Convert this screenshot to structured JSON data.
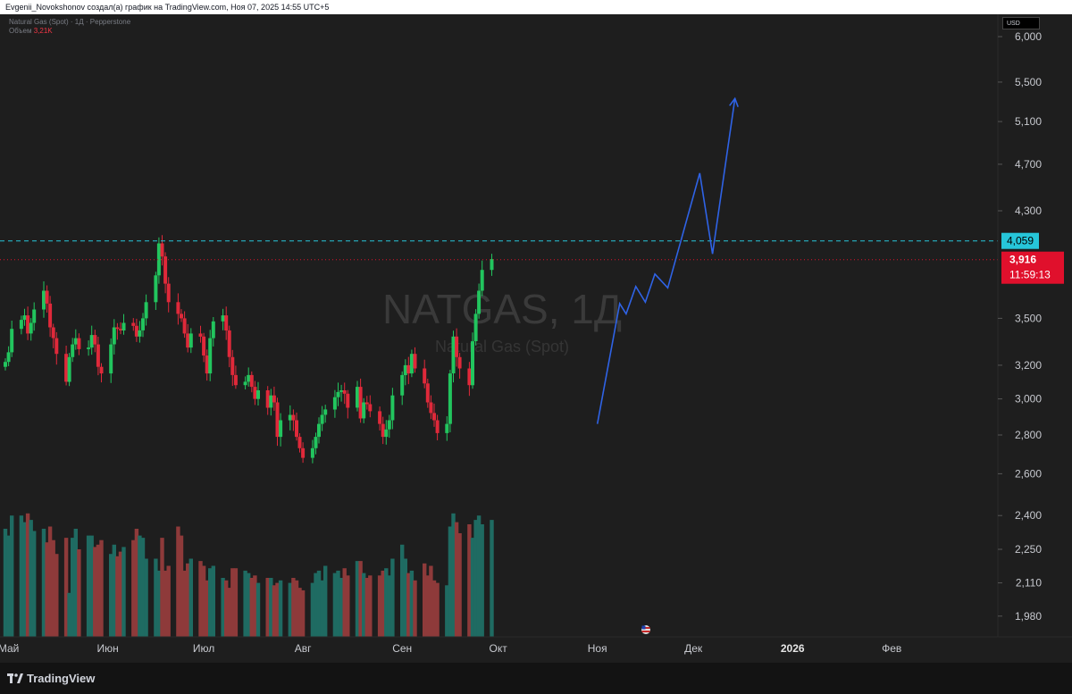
{
  "header": {
    "credit": "Evgenii_Novokshonov создал(а) график на TradingView.com, Ноя 07, 2025 14:55 UTC+5"
  },
  "legend": {
    "instrument": "Natural Gas (Spot) · 1Д · Pepperstone",
    "volume_label": "Объем",
    "volume_value": "3,21K"
  },
  "footer": {
    "brand": "TradingView"
  },
  "colors": {
    "background": "#1e1e1e",
    "up": "#22c55e",
    "down": "#e0293a",
    "volume_up": "#1f6b62",
    "volume_down": "#8e3a3a",
    "projection": "#2f63e6",
    "resistance": "#26c6da",
    "current_price": "#e0102c"
  },
  "chart_data": {
    "type": "candlestick",
    "symbol": "NATGAS, 1Д",
    "description": "Natural Gas (Spot)",
    "currency": "USD",
    "scale": "log",
    "y_ticks": [
      "6,000",
      "5,500",
      "5,100",
      "4,700",
      "4,300",
      "3,500",
      "3,200",
      "3,000",
      "2,800",
      "2,600",
      "2,400",
      "2,250",
      "2,110",
      "1,980"
    ],
    "x_ticks": [
      "Май",
      "Июн",
      "Июл",
      "Авг",
      "Сен",
      "Окт",
      "Ноя",
      "Дек",
      "2026",
      "Фев"
    ],
    "resistance_level": {
      "value": "4,059"
    },
    "current_price": {
      "value": "3,916",
      "countdown": "11:59:13"
    },
    "closes": [
      3.22,
      3.28,
      3.43,
      3.49,
      3.52,
      3.4,
      3.47,
      3.56,
      3.69,
      3.6,
      3.44,
      3.37,
      3.27,
      3.1,
      3.25,
      3.33,
      3.37,
      3.3,
      3.31,
      3.39,
      3.33,
      3.19,
      3.15,
      3.33,
      3.44,
      3.43,
      3.42,
      3.47,
      3.45,
      3.38,
      3.42,
      3.5,
      3.61,
      3.8,
      4.04,
      3.94,
      3.74,
      3.61,
      3.53,
      3.5,
      3.4,
      3.31,
      3.4,
      3.38,
      3.26,
      3.15,
      3.37,
      3.48,
      3.52,
      3.42,
      3.25,
      3.14,
      3.08,
      3.1,
      3.14,
      3.07,
      3.0,
      3.05,
      2.95,
      3.02,
      2.98,
      2.79,
      2.88,
      2.91,
      2.88,
      2.79,
      2.73,
      2.68,
      2.73,
      2.79,
      2.86,
      2.91,
      2.94,
      3.01,
      3.04,
      3.05,
      3.03,
      2.95,
      3.07,
      2.89,
      2.98,
      2.97,
      2.93,
      2.86,
      2.79,
      2.83,
      2.88,
      3.02,
      3.14,
      3.2,
      3.15,
      3.27,
      3.18,
      3.09,
      2.98,
      2.92,
      2.88,
      2.81,
      2.86,
      3.15,
      3.38,
      3.25,
      3.18,
      3.08,
      3.35,
      3.53,
      3.69,
      3.84,
      3.92
    ],
    "volumes": [
      2.34,
      2.31,
      2.4,
      2.4,
      2.37,
      2.41,
      2.38,
      2.33,
      2.34,
      2.28,
      2.35,
      2.29,
      2.23,
      2.3,
      2.07,
      2.3,
      2.34,
      2.25,
      2.31,
      2.31,
      2.26,
      2.27,
      2.29,
      2.23,
      2.27,
      2.22,
      2.24,
      2.26,
      2.29,
      2.34,
      2.31,
      2.3,
      2.21,
      2.21,
      2.16,
      2.3,
      2.16,
      2.18,
      2.35,
      2.31,
      2.16,
      2.19,
      2.21,
      2.2,
      2.18,
      2.12,
      2.17,
      2.18,
      2.13,
      2.12,
      2.09,
      2.17,
      2.17,
      2.16,
      2.15,
      2.13,
      2.14,
      2.11,
      2.13,
      2.13,
      2.1,
      2.11,
      2.12,
      2.11,
      2.13,
      2.12,
      2.09,
      2.08,
      2.11,
      2.15,
      2.16,
      2.12,
      2.18,
      2.15,
      2.16,
      2.13,
      2.17,
      2.14,
      2.2,
      2.2,
      2.15,
      2.13,
      2.14,
      2.14,
      2.16,
      2.17,
      2.14,
      2.21,
      2.27,
      2.21,
      2.15,
      2.16,
      2.12,
      2.19,
      2.14,
      2.18,
      2.12,
      2.11,
      2.1,
      2.35,
      2.41,
      2.37,
      2.32,
      2.36,
      2.3,
      2.38,
      2.4,
      2.36,
      2.38
    ],
    "projection_path": [
      {
        "date": "2025-11-01",
        "value": 2.86
      },
      {
        "date": "2025-11-08",
        "value": 3.6
      },
      {
        "date": "2025-11-10",
        "value": 3.53
      },
      {
        "date": "2025-11-13",
        "value": 3.72
      },
      {
        "date": "2025-11-16",
        "value": 3.61
      },
      {
        "date": "2025-11-19",
        "value": 3.81
      },
      {
        "date": "2025-11-23",
        "value": 3.71
      },
      {
        "date": "2025-12-03",
        "value": 4.62
      },
      {
        "date": "2025-12-07",
        "value": 3.96
      },
      {
        "date": "2025-12-14",
        "value": 5.33
      }
    ]
  }
}
